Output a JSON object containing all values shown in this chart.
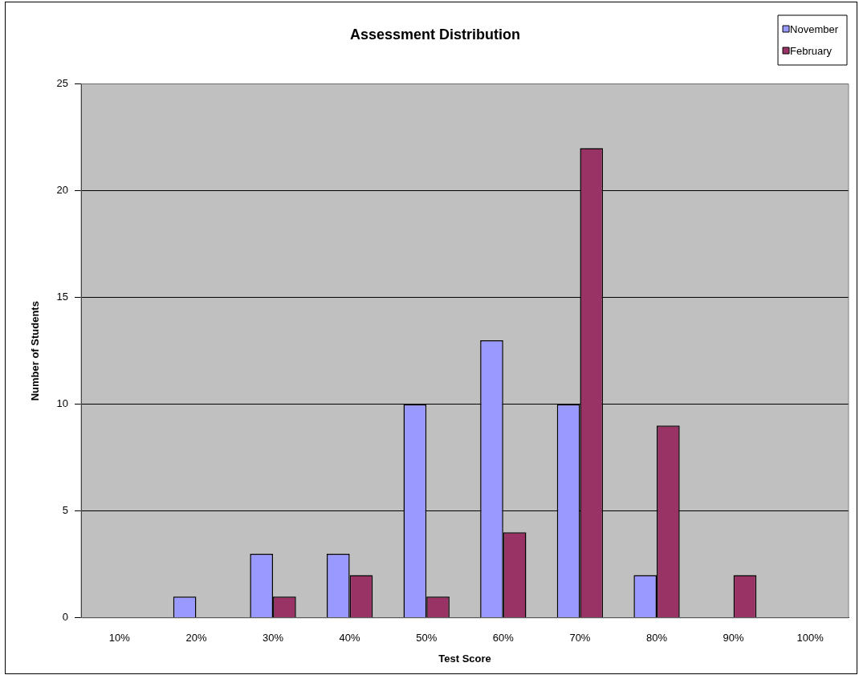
{
  "chart_data": {
    "type": "bar",
    "title": "Assessment Distribution",
    "xlabel": "Test Score",
    "ylabel": "Number of Students",
    "categories": [
      "10%",
      "20%",
      "30%",
      "40%",
      "50%",
      "60%",
      "70%",
      "80%",
      "90%",
      "100%"
    ],
    "series": [
      {
        "name": "November",
        "color": "#9999ff",
        "values": [
          0,
          1,
          3,
          3,
          10,
          13,
          10,
          2,
          0,
          0
        ]
      },
      {
        "name": "February",
        "color": "#993366",
        "values": [
          0,
          0,
          1,
          2,
          1,
          4,
          22,
          9,
          2,
          0
        ]
      }
    ],
    "ylim": [
      0,
      25
    ],
    "yticks": [
      0,
      5,
      10,
      15,
      20,
      25
    ],
    "grid": "y",
    "legend": "top right"
  }
}
